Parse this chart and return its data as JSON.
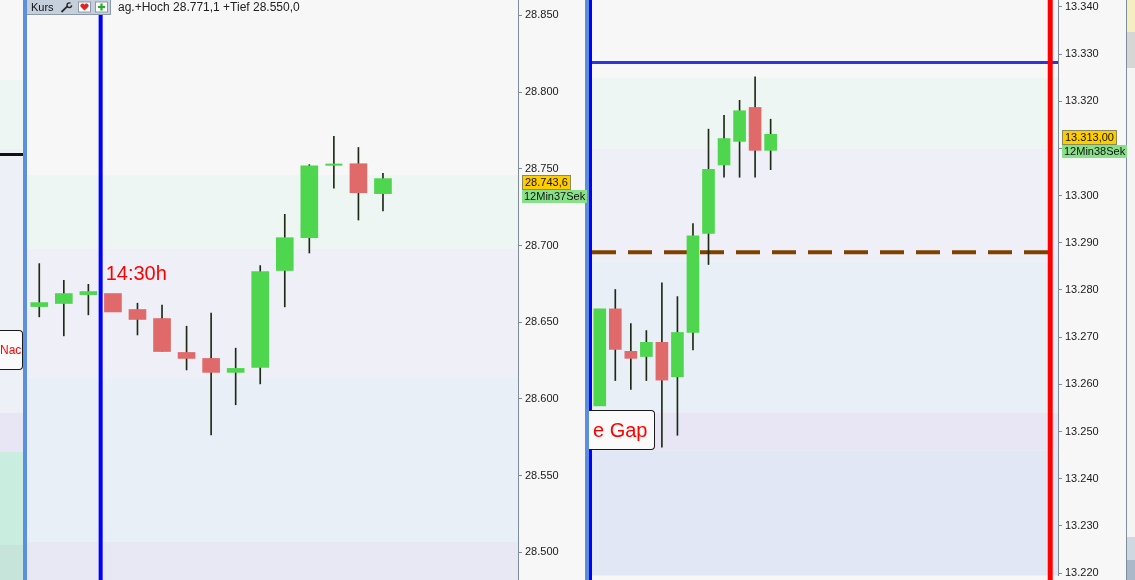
{
  "chart_data": [
    {
      "type": "other",
      "annotations": [
        "Nac"
      ]
    },
    {
      "type": "candlestick",
      "title": "Kurs",
      "categories": [
        null,
        null,
        null,
        null,
        null,
        null,
        null,
        null,
        null,
        null,
        null,
        null,
        null,
        null,
        null,
        null,
        null,
        null,
        null,
        null
      ],
      "ohlc": [
        [
          28660.2,
          28688.2,
          28653.5,
          28662.8
        ],
        [
          28662.2,
          28677.3,
          28641.1,
          28668.7
        ],
        [
          28668.0,
          28674.7,
          28654.8,
          28670.0
        ],
        [
          28668.7,
          28668.7,
          28656.7,
          28656.7
        ],
        [
          28658.3,
          28662.4,
          28641.7,
          28651.8
        ],
        [
          28652.4,
          28661.1,
          28630.9,
          28630.9
        ],
        [
          28630.3,
          28647.4,
          28618.9,
          28626.4
        ],
        [
          28626.4,
          28655.9,
          28576.6,
          28617.3
        ],
        [
          28617.3,
          28633.1,
          28596.2,
          28619.9
        ],
        [
          28620.5,
          28686.9,
          28609.8,
          28683.0
        ],
        [
          28683.7,
          28720.3,
          28660.0,
          28705.1
        ],
        [
          28705.1,
          28752.7,
          28695.1,
          28752.0
        ],
        [
          28752.7,
          28771.1,
          28737.4,
          28752.7
        ],
        [
          28753.3,
          28763.9,
          28716.6,
          28734.4
        ],
        [
          28733.8,
          28747.0,
          28722.5,
          28743.6
        ],
        null,
        null,
        null,
        null,
        null
      ],
      "colors": [
        "#4fd64f",
        "#4fd64f",
        "#4fd64f",
        "#e06a6a",
        "#e06a6a",
        "#e06a6a",
        "#e06a6a",
        "#e06a6a",
        "#4fd64f",
        "#4fd64f",
        "#4fd64f",
        "#4fd64f",
        "#4fd64f",
        "#e06a6a",
        "#4fd64f",
        null,
        null,
        null,
        null,
        null
      ],
      "ylim": [
        28482,
        28860
      ],
      "yticks": [
        {
          "value": 28500,
          "label": "28.500"
        },
        {
          "value": 28550,
          "label": "28.550"
        },
        {
          "value": 28600,
          "label": "28.600"
        },
        {
          "value": 28650,
          "label": "28.650"
        },
        {
          "value": 28700,
          "label": "28.700"
        },
        {
          "value": 28750,
          "label": "28.750"
        },
        {
          "value": 28800,
          "label": "28.800"
        },
        {
          "value": 28850,
          "label": "28.850"
        }
      ],
      "tick_labels": "y",
      "bands": [
        {
          "axis": "y",
          "from": 28698,
          "to": 28746,
          "color": "#eef6f4"
        },
        {
          "axis": "y",
          "from": 28614,
          "to": 28698,
          "color": "#eff0f7"
        },
        {
          "axis": "y",
          "from": 28507,
          "to": 28614,
          "color": "#e9eff7"
        },
        {
          "axis": "y",
          "from": 28482,
          "to": 28507,
          "color": "#e8e8f5"
        }
      ],
      "annotations": [
        "ag.+Hoch 28.771,1 +Tief 28.550,0",
        "14:30h",
        "28.743,6",
        "12Min37Sek"
      ]
    },
    {
      "type": "candlestick",
      "categories": [
        null,
        null,
        null,
        null,
        null,
        null,
        null,
        null,
        null,
        null,
        null,
        null,
        null,
        null,
        null,
        null,
        null,
        null,
        null,
        null,
        null,
        null,
        null,
        null,
        null,
        null,
        null,
        null,
        null,
        null
      ],
      "ohlc": [
        [
          13255.4,
          13276.0,
          13255.4,
          13276.0
        ],
        [
          13276.0,
          13280.1,
          13260.8,
          13267.4
        ],
        [
          13267.0,
          13272.9,
          13258.9,
          13265.5
        ],
        [
          13265.9,
          13271.4,
          13260.8,
          13268.9
        ],
        [
          13268.9,
          13281.5,
          13246.7,
          13260.9
        ],
        [
          13261.6,
          13278.6,
          13249.2,
          13271.0
        ],
        [
          13271.0,
          13294.1,
          13267.3,
          13291.5
        ],
        [
          13292.0,
          13314.1,
          13285.4,
          13305.6
        ],
        [
          13306.5,
          13317.0,
          13303.9,
          13312.1
        ],
        [
          13311.5,
          13320.2,
          13303.9,
          13318.0
        ],
        [
          13318.7,
          13325.2,
          13303.9,
          13309.6
        ],
        [
          13309.6,
          13316.2,
          13305.5,
          13313.0
        ],
        null,
        null,
        null,
        null,
        null,
        null,
        null,
        null,
        null,
        null,
        null,
        null,
        null,
        null,
        null,
        null,
        null,
        null
      ],
      "colors": [
        "#4fd64f",
        "#e06a6a",
        "#e06a6a",
        "#4fd64f",
        "#e06a6a",
        "#4fd64f",
        "#4fd64f",
        "#4fd64f",
        "#4fd64f",
        "#4fd64f",
        "#e06a6a",
        "#4fd64f",
        null,
        null,
        null,
        null,
        null,
        null,
        null,
        null,
        null,
        null,
        null,
        null,
        null,
        null,
        null,
        null,
        null,
        null
      ],
      "ylim": [
        13219.5,
        13341.4
      ],
      "yticks": [
        {
          "value": 13220,
          "label": "13.220"
        },
        {
          "value": 13230,
          "label": "13.230"
        },
        {
          "value": 13240,
          "label": "13.240"
        },
        {
          "value": 13250,
          "label": "13.250"
        },
        {
          "value": 13260,
          "label": "13.260"
        },
        {
          "value": 13270,
          "label": "13.270"
        },
        {
          "value": 13280,
          "label": "13.280"
        },
        {
          "value": 13290,
          "label": "13.290"
        },
        {
          "value": 13300,
          "label": "13.300"
        },
        {
          "value": 13310,
          "label": null
        },
        {
          "value": 13320,
          "label": "13.320"
        },
        {
          "value": 13330,
          "label": "13.330"
        },
        {
          "value": 13340,
          "label": "13.340"
        }
      ],
      "tick_labels": "y",
      "bands": [
        {
          "axis": "y",
          "from": 13310,
          "to": 13325,
          "color": "#eef6f4"
        },
        {
          "axis": "y",
          "from": 13286,
          "to": 13310,
          "color": "#eff0f7"
        },
        {
          "axis": "y",
          "from": 13254,
          "to": 13286,
          "color": "#e9eff7"
        },
        {
          "axis": "y",
          "from": 13246,
          "to": 13254,
          "color": "#e8e6f5"
        },
        {
          "axis": "y",
          "from": 13219.5,
          "to": 13246,
          "color": "#e1e7f5"
        }
      ],
      "ref_lines": [
        {
          "axis": "y",
          "value": 13328.2,
          "color": "#3333dd"
        },
        {
          "axis": "y",
          "value": 13288,
          "color": "#7f4000",
          "line_style": "dashed"
        }
      ],
      "annotations": [
        "e Gap",
        "13.313,00",
        "12Min38Sek"
      ]
    }
  ]
}
